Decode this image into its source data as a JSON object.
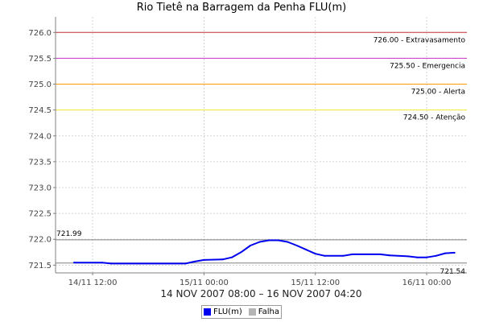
{
  "chart_data": {
    "type": "line",
    "title": "Rio Tietê na Barragem da Penha FLU(m)",
    "xlabel": "14 NOV 2007 08:00 – 16 NOV 2007 04:20",
    "ylabel": "",
    "x_range": [
      "2007-11-14 08:00",
      "2007-11-16 04:20"
    ],
    "ylim": [
      721.35,
      726.3
    ],
    "y_ticks": [
      {
        "value": 721.5,
        "label": "721.5"
      },
      {
        "value": 722.0,
        "label": "722.0"
      },
      {
        "value": 722.5,
        "label": "722.5"
      },
      {
        "value": 723.0,
        "label": "723.0"
      },
      {
        "value": 723.5,
        "label": "723.5"
      },
      {
        "value": 724.0,
        "label": "724.0"
      },
      {
        "value": 724.5,
        "label": "724.5"
      },
      {
        "value": 725.0,
        "label": "725.0"
      },
      {
        "value": 725.5,
        "label": "725.5"
      },
      {
        "value": 726.0,
        "label": "726.0"
      }
    ],
    "x_ticks": [
      {
        "t": "2007-11-14 12:00",
        "label": "14/11 12:00"
      },
      {
        "t": "2007-11-15 00:00",
        "label": "15/11 00:00"
      },
      {
        "t": "2007-11-15 12:00",
        "label": "15/11 12:00"
      },
      {
        "t": "2007-11-16 00:00",
        "label": "16/11 00:00"
      }
    ],
    "grid": true,
    "thresholds": [
      {
        "value": 726.0,
        "label": "726.00 - Extravasamento",
        "color": "#cc3333"
      },
      {
        "value": 725.5,
        "label": "725.50 - Emergencia",
        "color": "#cc33cc"
      },
      {
        "value": 725.0,
        "label": "725.00 - Alerta",
        "color": "#ff9900"
      },
      {
        "value": 724.5,
        "label": "724.50 - Atenção",
        "color": "#eeee33"
      }
    ],
    "reference_lines": [
      {
        "value": 721.99,
        "label": "721.99",
        "label_side": "left",
        "color": "#808080"
      },
      {
        "value": 721.54,
        "label": "721.54",
        "label_side": "right",
        "color": "#808080"
      }
    ],
    "series": [
      {
        "name": "FLU(m)",
        "color": "#0000ee",
        "points": [
          {
            "t": "2007-11-14 10:00",
            "v": 721.55
          },
          {
            "t": "2007-11-14 13:00",
            "v": 721.55
          },
          {
            "t": "2007-11-14 14:00",
            "v": 721.53
          },
          {
            "t": "2007-11-14 17:00",
            "v": 721.53
          },
          {
            "t": "2007-11-14 22:00",
            "v": 721.53
          },
          {
            "t": "2007-11-14 23:00",
            "v": 721.57
          },
          {
            "t": "2007-11-15 00:00",
            "v": 721.6
          },
          {
            "t": "2007-11-15 02:00",
            "v": 721.61
          },
          {
            "t": "2007-11-15 03:00",
            "v": 721.65
          },
          {
            "t": "2007-11-15 04:00",
            "v": 721.75
          },
          {
            "t": "2007-11-15 05:00",
            "v": 721.88
          },
          {
            "t": "2007-11-15 06:00",
            "v": 721.95
          },
          {
            "t": "2007-11-15 07:00",
            "v": 721.98
          },
          {
            "t": "2007-11-15 08:00",
            "v": 721.98
          },
          {
            "t": "2007-11-15 09:00",
            "v": 721.95
          },
          {
            "t": "2007-11-15 10:00",
            "v": 721.88
          },
          {
            "t": "2007-11-15 11:00",
            "v": 721.8
          },
          {
            "t": "2007-11-15 12:00",
            "v": 721.72
          },
          {
            "t": "2007-11-15 13:00",
            "v": 721.68
          },
          {
            "t": "2007-11-15 15:00",
            "v": 721.68
          },
          {
            "t": "2007-11-15 16:00",
            "v": 721.71
          },
          {
            "t": "2007-11-15 19:00",
            "v": 721.71
          },
          {
            "t": "2007-11-15 20:00",
            "v": 721.69
          },
          {
            "t": "2007-11-15 22:00",
            "v": 721.67
          },
          {
            "t": "2007-11-15 23:00",
            "v": 721.65
          },
          {
            "t": "2007-11-16 00:00",
            "v": 721.65
          },
          {
            "t": "2007-11-16 01:00",
            "v": 721.68
          },
          {
            "t": "2007-11-16 02:00",
            "v": 721.73
          },
          {
            "t": "2007-11-16 03:00",
            "v": 721.74
          }
        ]
      }
    ],
    "legend": {
      "placement": "bottom",
      "items": [
        {
          "label": "FLU(m)",
          "color": "#0000ee"
        },
        {
          "label": "Falha",
          "color": "#b4b4b4"
        }
      ]
    }
  }
}
